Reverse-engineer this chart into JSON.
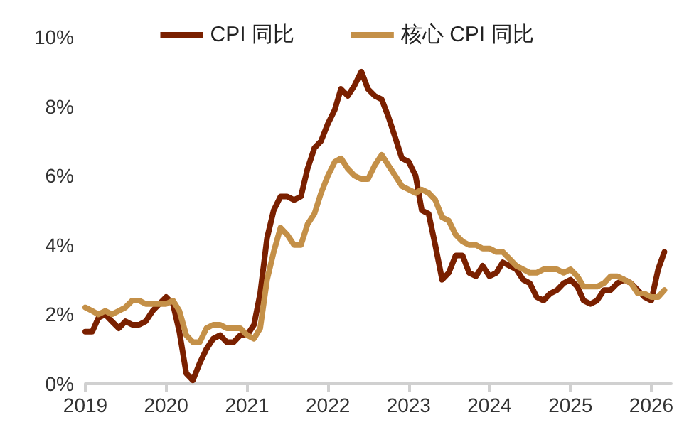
{
  "chart_data": {
    "type": "line",
    "legend": "top",
    "grid": false,
    "line_style": "solid",
    "marker": "none",
    "xlim": [
      "2019-01",
      "2026-04"
    ],
    "xticks": [
      "2019",
      "2020",
      "2021",
      "2022",
      "2023",
      "2024",
      "2025",
      "2026"
    ],
    "ylim": [
      0,
      10
    ],
    "yticks": [
      {
        "value": 0,
        "label": "0%"
      },
      {
        "value": 2,
        "label": "2%"
      },
      {
        "value": 4,
        "label": "4%"
      },
      {
        "value": 6,
        "label": "6%"
      },
      {
        "value": 8,
        "label": "8%"
      },
      {
        "value": 10,
        "label": "10%"
      }
    ],
    "x": [
      "2019-01",
      "2019-02",
      "2019-03",
      "2019-04",
      "2019-05",
      "2019-06",
      "2019-07",
      "2019-08",
      "2019-09",
      "2019-10",
      "2019-11",
      "2019-12",
      "2020-01",
      "2020-02",
      "2020-03",
      "2020-04",
      "2020-05",
      "2020-06",
      "2020-07",
      "2020-08",
      "2020-09",
      "2020-10",
      "2020-11",
      "2020-12",
      "2021-01",
      "2021-02",
      "2021-03",
      "2021-04",
      "2021-05",
      "2021-06",
      "2021-07",
      "2021-08",
      "2021-09",
      "2021-10",
      "2021-11",
      "2021-12",
      "2022-01",
      "2022-02",
      "2022-03",
      "2022-04",
      "2022-05",
      "2022-06",
      "2022-07",
      "2022-08",
      "2022-09",
      "2022-10",
      "2022-11",
      "2022-12",
      "2023-01",
      "2023-02",
      "2023-03",
      "2023-04",
      "2023-05",
      "2023-06",
      "2023-07",
      "2023-08",
      "2023-09",
      "2023-10",
      "2023-11",
      "2023-12",
      "2024-01",
      "2024-02",
      "2024-03",
      "2024-04",
      "2024-05",
      "2024-06",
      "2024-07",
      "2024-08",
      "2024-09",
      "2024-10",
      "2024-11",
      "2024-12",
      "2025-01",
      "2025-02",
      "2025-03",
      "2025-04",
      "2025-05",
      "2025-06",
      "2025-07",
      "2025-08",
      "2025-09",
      "2025-10",
      "2025-11",
      "2025-12",
      "2026-01",
      "2026-02",
      "2026-03"
    ],
    "series": [
      {
        "name": "CPI 同比",
        "color": "#7a2000",
        "values": [
          1.5,
          1.5,
          1.9,
          2.0,
          1.8,
          1.6,
          1.8,
          1.7,
          1.7,
          1.8,
          2.1,
          2.3,
          2.5,
          2.3,
          1.5,
          0.3,
          0.1,
          0.6,
          1.0,
          1.3,
          1.4,
          1.2,
          1.2,
          1.4,
          1.4,
          1.7,
          2.6,
          4.2,
          5.0,
          5.4,
          5.4,
          5.3,
          5.4,
          6.2,
          6.8,
          7.0,
          7.5,
          7.9,
          8.5,
          8.3,
          8.6,
          9.0,
          8.5,
          8.3,
          8.2,
          7.7,
          7.1,
          6.5,
          6.4,
          6.0,
          5.0,
          4.9,
          4.0,
          3.0,
          3.2,
          3.7,
          3.7,
          3.2,
          3.1,
          3.4,
          3.1,
          3.2,
          3.5,
          3.4,
          3.3,
          3.0,
          2.9,
          2.5,
          2.4,
          2.6,
          2.7,
          2.9,
          3.0,
          2.8,
          2.4,
          2.3,
          2.4,
          2.7,
          2.7,
          2.9,
          3.0,
          2.9,
          2.7,
          2.5,
          2.4,
          3.3,
          3.8
        ]
      },
      {
        "name": "核心 CPI 同比",
        "color": "#c49048",
        "values": [
          2.2,
          2.1,
          2.0,
          2.1,
          2.0,
          2.1,
          2.2,
          2.4,
          2.4,
          2.3,
          2.3,
          2.3,
          2.3,
          2.4,
          2.1,
          1.4,
          1.2,
          1.2,
          1.6,
          1.7,
          1.7,
          1.6,
          1.6,
          1.6,
          1.4,
          1.3,
          1.6,
          3.0,
          3.8,
          4.5,
          4.3,
          4.0,
          4.0,
          4.6,
          4.9,
          5.5,
          6.0,
          6.4,
          6.5,
          6.2,
          6.0,
          5.9,
          5.9,
          6.3,
          6.6,
          6.3,
          6.0,
          5.7,
          5.6,
          5.5,
          5.6,
          5.5,
          5.3,
          4.8,
          4.7,
          4.3,
          4.1,
          4.0,
          4.0,
          3.9,
          3.9,
          3.8,
          3.8,
          3.6,
          3.4,
          3.3,
          3.2,
          3.2,
          3.3,
          3.3,
          3.3,
          3.2,
          3.3,
          3.1,
          2.8,
          2.8,
          2.8,
          2.9,
          3.1,
          3.1,
          3.0,
          2.9,
          2.6,
          2.6,
          2.5,
          2.5,
          2.7
        ]
      }
    ]
  }
}
